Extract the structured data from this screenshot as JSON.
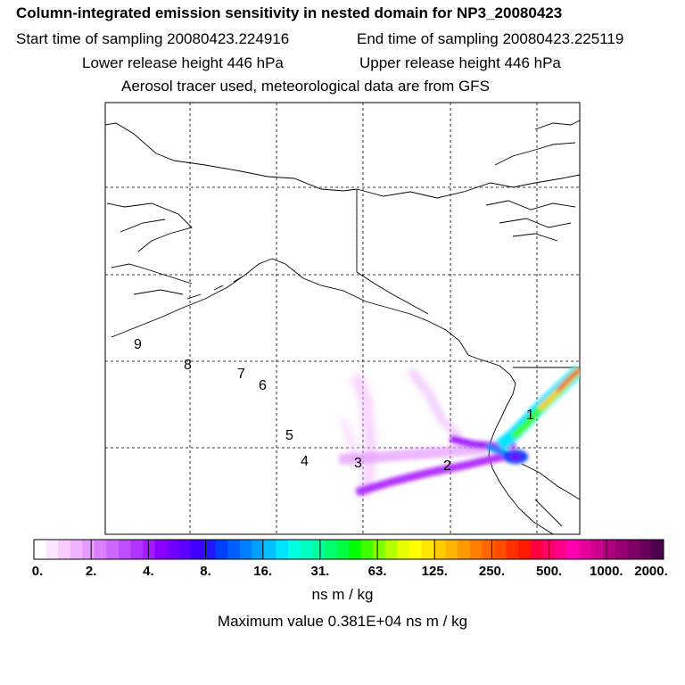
{
  "header": {
    "title": "Column-integrated emission sensitivity in nested domain for NP3_20080423",
    "start_time": "Start time of sampling 20080423.224916",
    "end_time": "End time of sampling 20080423.225119",
    "lower_height": "Lower release height  446 hPa",
    "upper_height": "Upper release height  446 hPa",
    "tracer_info": "Aerosol tracer used, meteorological data are from GFS"
  },
  "map": {
    "labels": [
      "1",
      "2",
      "3",
      "4",
      "5",
      "6",
      "7",
      "8",
      "9"
    ]
  },
  "colorbar": {
    "tick_labels": [
      "0.",
      "2.",
      "4.",
      "8.",
      "16.",
      "31.",
      "63.",
      "125.",
      "250.",
      "500.",
      "1000.",
      "2000."
    ],
    "colors": [
      "#ffffff",
      "#fbe6ff",
      "#f7ccff",
      "#f0b3ff",
      "#e699ff",
      "#d97fff",
      "#cc66ff",
      "#bf4dff",
      "#b233ff",
      "#a31aff",
      "#8c00ff",
      "#7300ff",
      "#5a00ff",
      "#3d00ff",
      "#2018ff",
      "#0040ff",
      "#0060ff",
      "#0080ff",
      "#00a0ff",
      "#00c0ff",
      "#00e5ff",
      "#00ffe0",
      "#00ffc0",
      "#00ff9f",
      "#00ff70",
      "#00ff40",
      "#00ff00",
      "#40ff00",
      "#80ff00",
      "#b3ff00",
      "#e6ff00",
      "#ffff00",
      "#ffe600",
      "#ffcc00",
      "#ffb300",
      "#ff9900",
      "#ff8000",
      "#ff6600",
      "#ff4d00",
      "#ff2f00",
      "#ff1a00",
      "#ff0040",
      "#ff0066",
      "#ff008c",
      "#ff00b3",
      "#e600a0",
      "#cc008c",
      "#b30080",
      "#990073",
      "#800066",
      "#66005a",
      "#4d004d"
    ],
    "units": "ns m / kg",
    "max_value": "Maximum value  0.381E+04 ns m / kg"
  }
}
